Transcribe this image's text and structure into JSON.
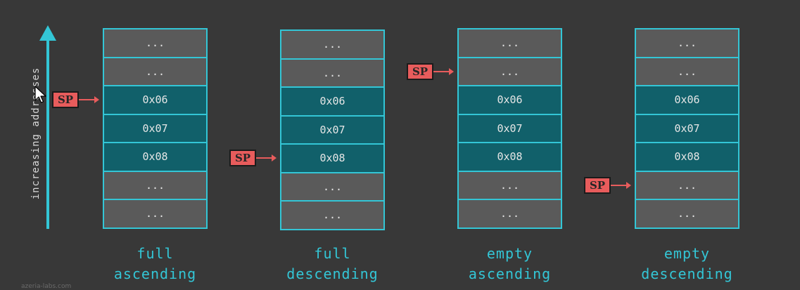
{
  "axis": {
    "label": "increasing addresses"
  },
  "stacks": [
    {
      "id": "full-ascending",
      "caption_line1": "full",
      "caption_line2": "ascending",
      "sp_label": "SP",
      "sp_points_to_row": 2,
      "cells": [
        {
          "text": "...",
          "kind": "empty"
        },
        {
          "text": "...",
          "kind": "empty"
        },
        {
          "text": "0x06",
          "kind": "data"
        },
        {
          "text": "0x07",
          "kind": "data"
        },
        {
          "text": "0x08",
          "kind": "data"
        },
        {
          "text": "...",
          "kind": "empty"
        },
        {
          "text": "...",
          "kind": "empty"
        }
      ]
    },
    {
      "id": "full-descending",
      "caption_line1": "full",
      "caption_line2": "descending",
      "sp_label": "SP",
      "sp_points_to_row": 4,
      "cells": [
        {
          "text": "...",
          "kind": "empty"
        },
        {
          "text": "...",
          "kind": "empty"
        },
        {
          "text": "0x06",
          "kind": "data"
        },
        {
          "text": "0x07",
          "kind": "data"
        },
        {
          "text": "0x08",
          "kind": "data"
        },
        {
          "text": "...",
          "kind": "empty"
        },
        {
          "text": "...",
          "kind": "empty"
        }
      ]
    },
    {
      "id": "empty-ascending",
      "caption_line1": "empty",
      "caption_line2": "ascending",
      "sp_label": "SP",
      "sp_points_to_row": 1,
      "cells": [
        {
          "text": "...",
          "kind": "empty"
        },
        {
          "text": "...",
          "kind": "empty"
        },
        {
          "text": "0x06",
          "kind": "data"
        },
        {
          "text": "0x07",
          "kind": "data"
        },
        {
          "text": "0x08",
          "kind": "data"
        },
        {
          "text": "...",
          "kind": "empty"
        },
        {
          "text": "...",
          "kind": "empty"
        }
      ]
    },
    {
      "id": "empty-descending",
      "caption_line1": "empty",
      "caption_line2": "descending",
      "sp_label": "SP",
      "sp_points_to_row": 5,
      "cells": [
        {
          "text": "...",
          "kind": "empty"
        },
        {
          "text": "...",
          "kind": "empty"
        },
        {
          "text": "0x06",
          "kind": "data"
        },
        {
          "text": "0x07",
          "kind": "data"
        },
        {
          "text": "0x08",
          "kind": "data"
        },
        {
          "text": "...",
          "kind": "empty"
        },
        {
          "text": "...",
          "kind": "empty"
        }
      ]
    }
  ],
  "watermark": "azeria-labs.com",
  "colors": {
    "background": "#383838",
    "accent": "#33c6d6",
    "empty_cell": "#5a5a5a",
    "data_cell": "#11606a",
    "sp": "#e85c5c"
  }
}
